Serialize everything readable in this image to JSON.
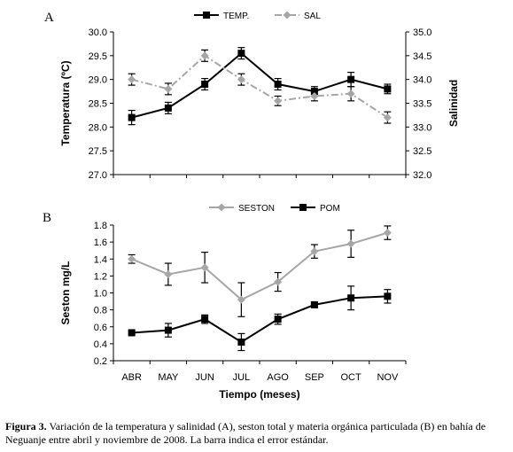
{
  "caption": {
    "label": "Figura 3.",
    "text": "Variación de la temperatura y salinidad (A), seston total y materia orgánica particulada (B) en bahía de Neguanje entre abril y noviembre de 2008. La barra indica el error estándar."
  },
  "colors": {
    "black": "#000000",
    "gray": "#a6a6a6"
  },
  "chart_data": [
    {
      "type": "line",
      "panel_label": "A",
      "categories": [
        "ABR",
        "MAY",
        "JUN",
        "JUL",
        "AGO",
        "SEP",
        "OCT",
        "NOV"
      ],
      "show_category_labels": false,
      "ylabel": "Temperatura (ºC)",
      "y2label": "Salinidad",
      "ylim": [
        27.0,
        30.0
      ],
      "y2lim": [
        32.0,
        35.0
      ],
      "yticks": [
        "27.0",
        "27.5",
        "28.0",
        "28.5",
        "29.0",
        "29.5",
        "30.0"
      ],
      "y2ticks": [
        "32.0",
        "32.5",
        "33.0",
        "33.5",
        "34.0",
        "34.5",
        "35.0"
      ],
      "legend_position": "top",
      "series": [
        {
          "name": "TEMP.",
          "axis": "left",
          "marker": "square",
          "line": "solid",
          "color": "#000000",
          "values": [
            28.2,
            28.4,
            28.9,
            29.55,
            28.9,
            28.75,
            29.0,
            28.8
          ],
          "errors": [
            0.15,
            0.12,
            0.12,
            0.12,
            0.12,
            0.1,
            0.15,
            0.1
          ]
        },
        {
          "name": "SAL",
          "axis": "right",
          "marker": "diamond",
          "line": "dashdot",
          "color": "#a6a6a6",
          "values": [
            34.0,
            33.8,
            34.5,
            34.0,
            33.55,
            33.65,
            33.7,
            33.2
          ],
          "errors": [
            0.12,
            0.12,
            0.12,
            0.12,
            0.1,
            0.1,
            0.15,
            0.12
          ]
        }
      ]
    },
    {
      "type": "line",
      "panel_label": "B",
      "categories": [
        "ABR",
        "MAY",
        "JUN",
        "JUL",
        "AGO",
        "SEP",
        "OCT",
        "NOV"
      ],
      "show_category_labels": true,
      "xlabel": "Tiempo (meses)",
      "ylabel": "Seston mg/L",
      "ylim": [
        0.2,
        1.8
      ],
      "yticks": [
        "0.2",
        "0.4",
        "0.6",
        "0.8",
        "1.0",
        "1.2",
        "1.4",
        "1.6",
        "1.8"
      ],
      "legend_position": "top",
      "series": [
        {
          "name": "SESTON",
          "marker": "diamond",
          "line": "solid",
          "color": "#a6a6a6",
          "values": [
            1.4,
            1.22,
            1.3,
            0.92,
            1.13,
            1.49,
            1.58,
            1.71
          ],
          "errors": [
            0.05,
            0.13,
            0.18,
            0.2,
            0.11,
            0.08,
            0.16,
            0.08
          ]
        },
        {
          "name": "POM",
          "marker": "square",
          "line": "solid",
          "color": "#000000",
          "values": [
            0.53,
            0.56,
            0.69,
            0.42,
            0.69,
            0.86,
            0.94,
            0.96
          ],
          "errors": [
            0.02,
            0.08,
            0.05,
            0.1,
            0.06,
            0.03,
            0.14,
            0.08
          ]
        }
      ]
    }
  ]
}
